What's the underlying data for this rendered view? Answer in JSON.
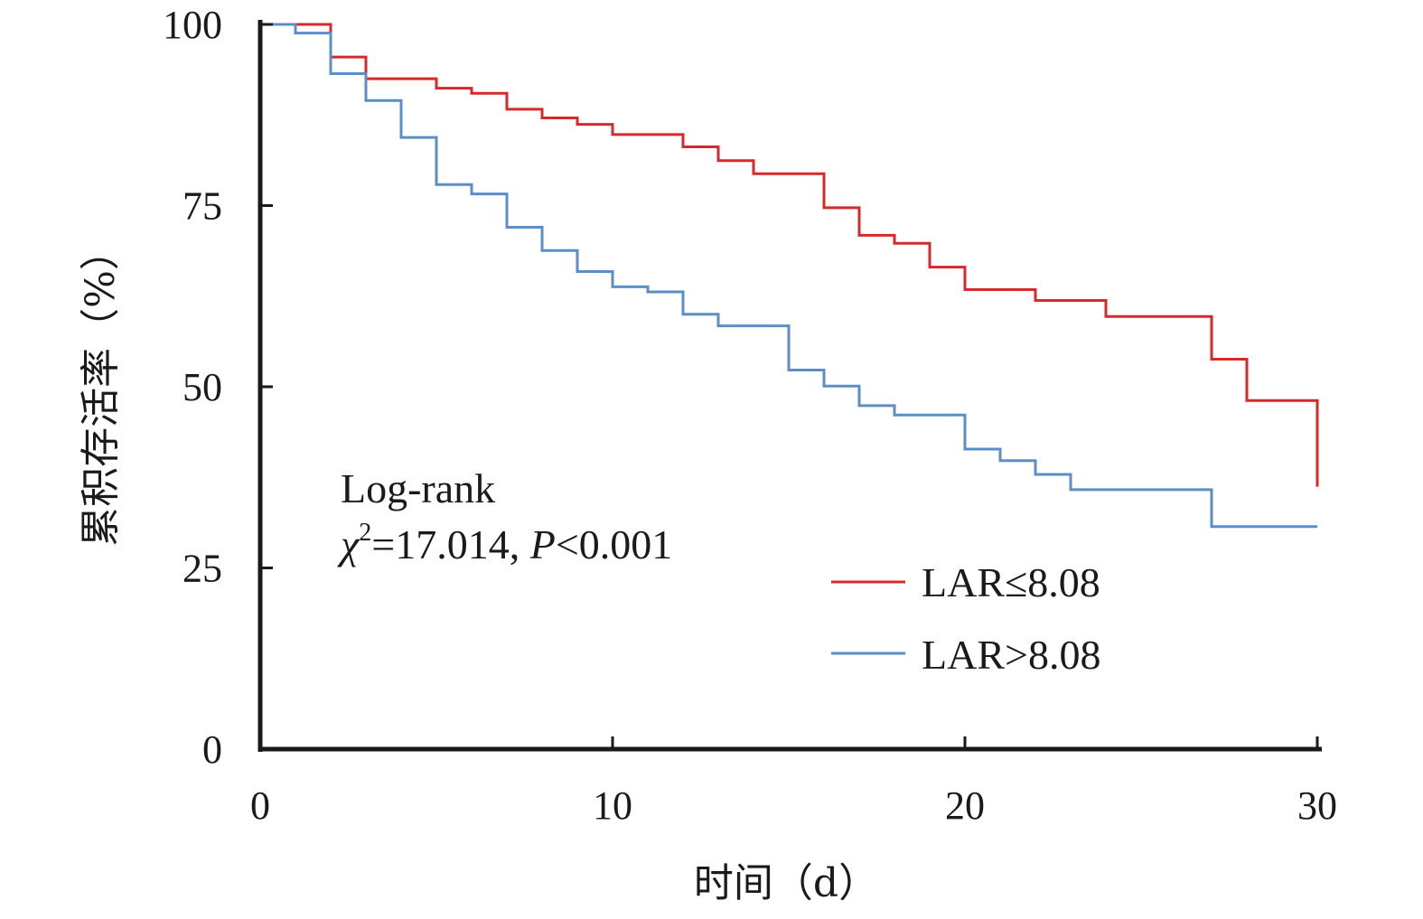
{
  "chart_data": {
    "type": "line",
    "step": true,
    "xlabel": "时间（d）",
    "ylabel": "累积存活率（%）",
    "xlim": [
      0,
      30
    ],
    "ylim": [
      0,
      100
    ],
    "xticks": [
      "0",
      "10",
      "20",
      "30"
    ],
    "xtick_values": [
      0,
      10,
      20,
      30
    ],
    "yticks": [
      "0",
      "25",
      "50",
      "75",
      "100"
    ],
    "ytick_values": [
      0,
      25,
      50,
      75,
      100
    ],
    "grid": false,
    "legend_position": "bottom-right",
    "annotation": {
      "line1": "Log-rank",
      "chi_symbol": "χ",
      "chi_exp": "2",
      "chi_value": "=17.014, ",
      "p_symbol": "P",
      "p_value": "<0.001"
    },
    "series": [
      {
        "name": "LAR≤8.08",
        "color": "#d62a2a",
        "x": [
          0,
          2,
          3,
          5,
          6,
          7,
          8,
          9,
          10,
          12,
          13,
          14,
          16,
          17,
          18,
          19,
          20,
          22,
          24,
          27,
          28,
          30
        ],
        "y": [
          100,
          95.5,
          92.5,
          91.2,
          90.5,
          88.3,
          87.1,
          86.2,
          84.8,
          83.1,
          81.2,
          79.4,
          74.7,
          70.9,
          69.8,
          66.5,
          63.4,
          61.9,
          59.7,
          53.8,
          48.1,
          36.2
        ]
      },
      {
        "name": "LAR>8.08",
        "color": "#5b8ec9",
        "x": [
          0,
          1,
          2,
          3,
          4,
          5,
          6,
          7,
          8,
          9,
          10,
          11,
          12,
          13,
          15,
          16,
          17,
          18,
          20,
          21,
          22,
          23,
          27,
          30
        ],
        "y": [
          100,
          98.8,
          93.2,
          89.5,
          84.4,
          77.9,
          76.6,
          72.0,
          68.8,
          65.9,
          63.8,
          63.1,
          60.0,
          58.4,
          52.3,
          50.1,
          47.4,
          46.1,
          41.4,
          39.8,
          37.9,
          35.8,
          30.7,
          30.7
        ]
      }
    ]
  }
}
